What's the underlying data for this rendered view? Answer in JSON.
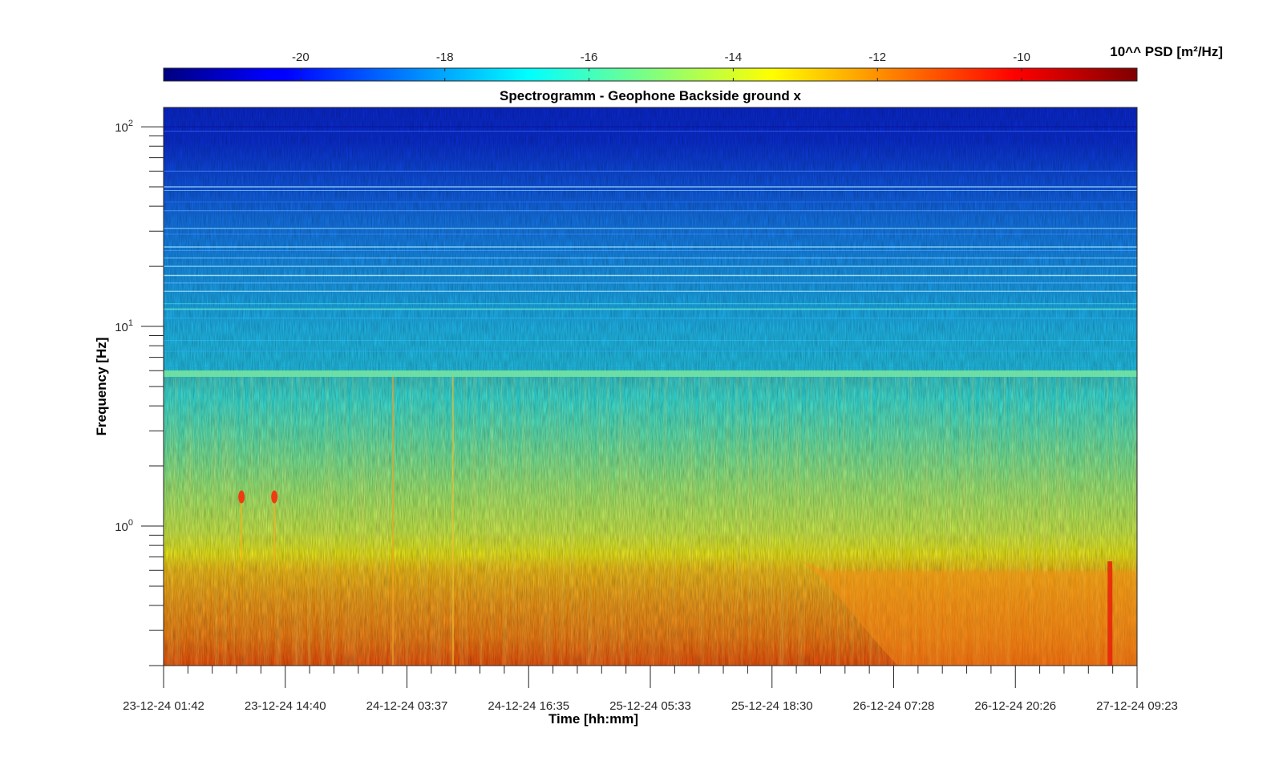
{
  "chart_data": {
    "type": "heatmap",
    "title": "Spectrogramm - Geophone Backside ground x",
    "xlabel": "Time [hh:mm]",
    "ylabel": "Frequency [Hz]",
    "yscale": "log",
    "ylim": [
      0.2,
      125
    ],
    "x_ticks": [
      "23-12-24 01:42",
      "23-12-24 14:40",
      "24-12-24 03:37",
      "24-12-24 16:35",
      "25-12-24 05:33",
      "25-12-24 18:30",
      "26-12-24 07:28",
      "26-12-24 20:26",
      "27-12-24 09:23"
    ],
    "y_ticks": [
      {
        "base": "10",
        "exp": "2",
        "value": 100
      },
      {
        "base": "10",
        "exp": "1",
        "value": 10
      },
      {
        "base": "10",
        "exp": "0",
        "value": 1
      }
    ],
    "colorbar": {
      "label": "10^^ PSD [m²/Hz]",
      "ticks": [
        "-20",
        "-18",
        "-16",
        "-14",
        "-12",
        "-10"
      ],
      "tick_values": [
        -20,
        -18,
        -16,
        -14,
        -12,
        -10
      ],
      "range": [
        -21.9,
        -8.4
      ],
      "colormap": "jet"
    },
    "frequency_bands": [
      {
        "from_hz": 50,
        "to_hz": 125,
        "log10_psd": -20.5
      },
      {
        "from_hz": 12,
        "to_hz": 50,
        "log10_psd": -18.3
      },
      {
        "from_hz": 6,
        "to_hz": 12,
        "log10_psd": -17.0
      },
      {
        "from_hz": 0.65,
        "to_hz": 6,
        "log10_psd": -15.0
      },
      {
        "from_hz": 0.2,
        "to_hz": 0.65,
        "log10_psd": -12.0
      }
    ],
    "features": [
      {
        "kind": "horizontal-line",
        "freq_hz": 5.8,
        "log10_psd": -15.5
      },
      {
        "kind": "burst",
        "time": "23-12-24 10:00",
        "freq_hz": 1.4,
        "log10_psd": -10.5
      },
      {
        "kind": "burst",
        "time": "23-12-24 13:30",
        "freq_hz": 1.4,
        "log10_psd": -10.5
      },
      {
        "kind": "broadband-spike",
        "time": "27-12-24 06:30",
        "log10_psd": -10.2
      }
    ]
  }
}
